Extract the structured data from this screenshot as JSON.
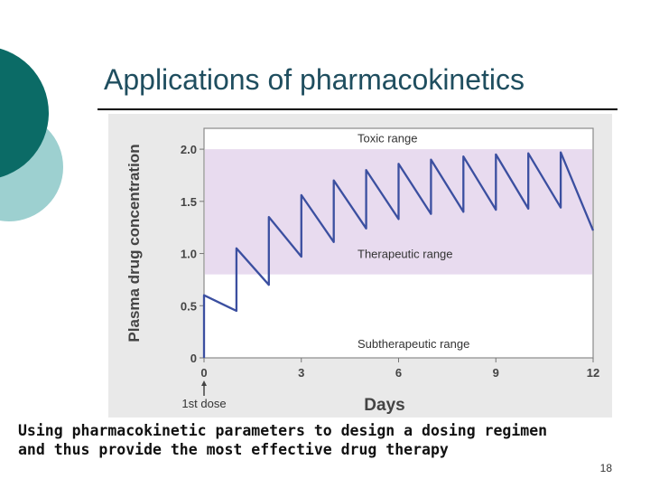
{
  "slide": {
    "title": "Applications of pharmacokinetics",
    "caption_line1": "Using pharmacokinetic parameters to design a dosing regimen",
    "caption_line2": "and thus provide the most effective drug therapy",
    "page_number": "18"
  },
  "colors": {
    "accent_dark": "#0b6b66",
    "accent_light": "#9dd0d0",
    "therapeutic_band": "#e8dbef",
    "curve": "#3b4fa0",
    "figure_bg": "#e9e9e9"
  },
  "chart_data": {
    "type": "line",
    "xlabel": "Days",
    "ylabel": "Plasma drug concentration",
    "xlim": [
      0,
      12
    ],
    "ylim": [
      0,
      2.2
    ],
    "x_ticks": [
      "0",
      "3",
      "6",
      "9",
      "12"
    ],
    "y_ticks": [
      "0",
      "0.5",
      "1.0",
      "1.5",
      "2.0"
    ],
    "regions": [
      {
        "label": "Toxic range",
        "from": 2.0,
        "to": 2.2
      },
      {
        "label": "Therapeutic range",
        "from": 0.8,
        "to": 2.0
      },
      {
        "label": "Subtherapeutic range",
        "from": 0.0,
        "to": 0.8
      }
    ],
    "annotation": "1st dose",
    "series": [
      {
        "values": [
          [
            0,
            0
          ],
          [
            0,
            0.6
          ],
          [
            1,
            0.45
          ],
          [
            1,
            1.05
          ],
          [
            2,
            0.7
          ],
          [
            2,
            1.35
          ],
          [
            3,
            0.97
          ],
          [
            3,
            1.56
          ],
          [
            4,
            1.11
          ],
          [
            4,
            1.7
          ],
          [
            5,
            1.24
          ],
          [
            5,
            1.8
          ],
          [
            6,
            1.33
          ],
          [
            6,
            1.86
          ],
          [
            7,
            1.38
          ],
          [
            7,
            1.9
          ],
          [
            8,
            1.4
          ],
          [
            8,
            1.93
          ],
          [
            9,
            1.42
          ],
          [
            9,
            1.95
          ],
          [
            10,
            1.43
          ],
          [
            10,
            1.96
          ],
          [
            11,
            1.44
          ],
          [
            11,
            1.97
          ],
          [
            12,
            1.22
          ]
        ]
      }
    ]
  }
}
